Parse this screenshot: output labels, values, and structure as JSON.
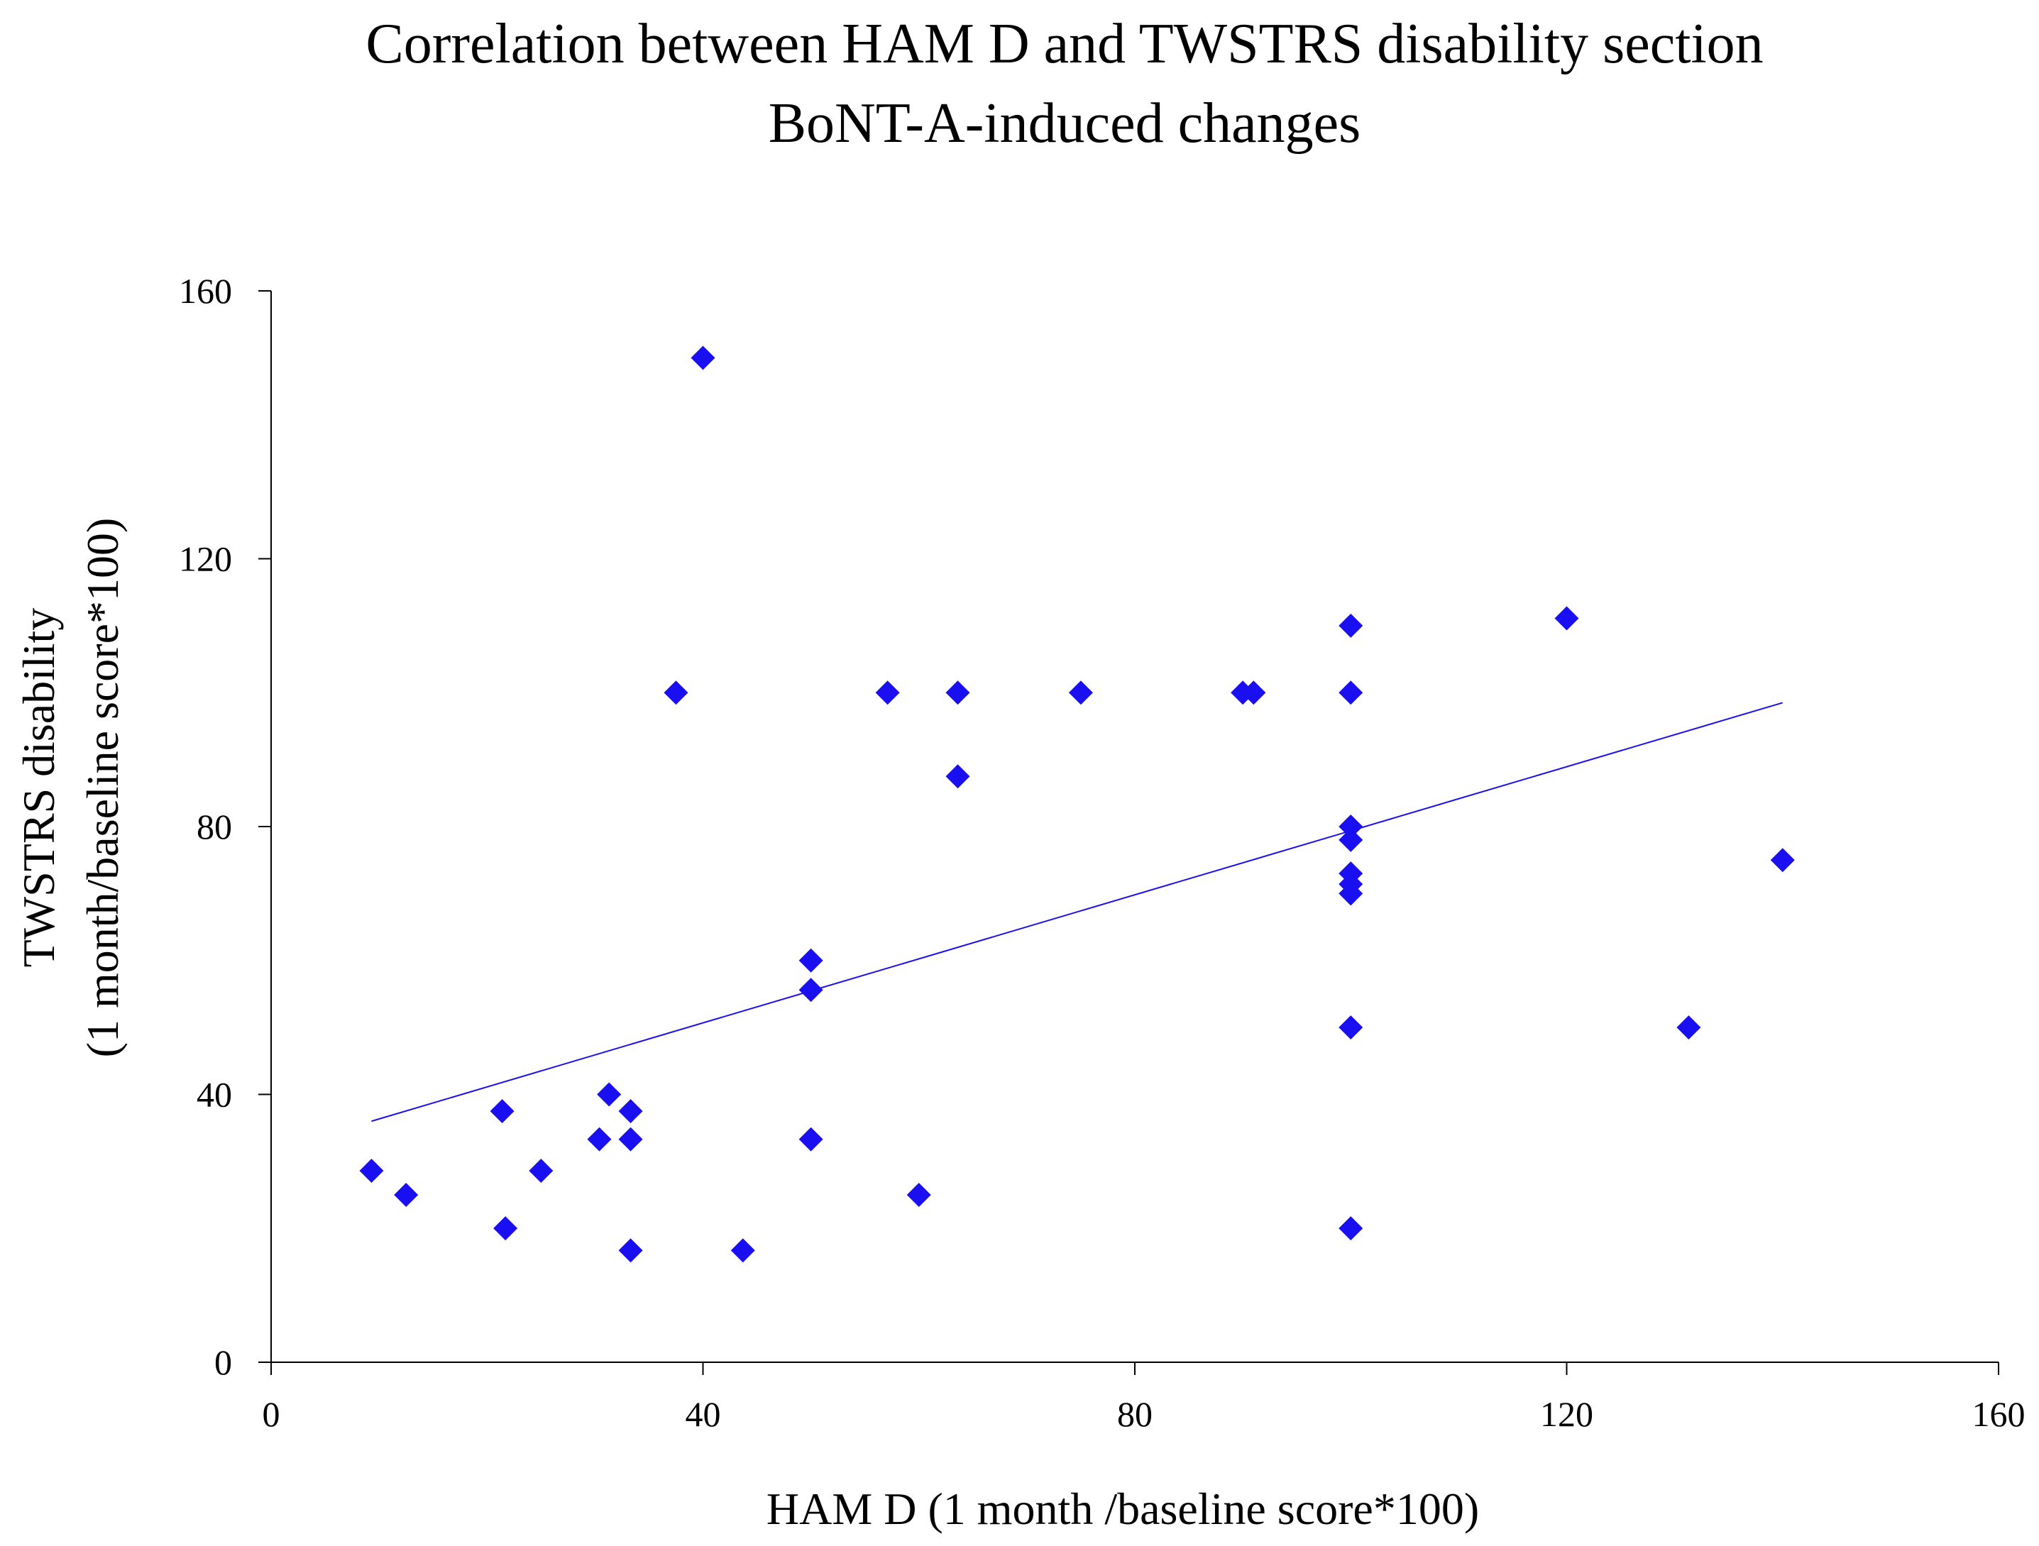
{
  "chart_data": {
    "type": "scatter",
    "title": "Correlation between HAM D and TWSTRS disability section",
    "subtitle": "BoNT-A-induced changes",
    "xlabel": "HAM D  (1 month /baseline score*100)",
    "ylabel_line1": "TWSTRS disability",
    "ylabel_line2": "(1 month/baseline score*100)",
    "xlim": [
      0,
      160
    ],
    "ylim": [
      0,
      160
    ],
    "x_ticks": [
      0,
      40,
      80,
      120,
      160
    ],
    "y_ticks": [
      0,
      40,
      80,
      120,
      160
    ],
    "x_tick_labels": [
      "0",
      "40",
      "80",
      "120",
      "160"
    ],
    "y_tick_labels": [
      "0",
      "40",
      "80",
      "120",
      "160"
    ],
    "grid": false,
    "legend": "none",
    "series": [
      {
        "name": "data",
        "marker": "diamond",
        "color": "#1a0ff0",
        "points": [
          {
            "x": 9.3,
            "y": 28.6
          },
          {
            "x": 12.5,
            "y": 25
          },
          {
            "x": 21.4,
            "y": 37.5
          },
          {
            "x": 21.7,
            "y": 20
          },
          {
            "x": 25,
            "y": 28.6
          },
          {
            "x": 30.4,
            "y": 33.3
          },
          {
            "x": 31.3,
            "y": 40
          },
          {
            "x": 33.3,
            "y": 37.5
          },
          {
            "x": 33.3,
            "y": 33.3
          },
          {
            "x": 33.3,
            "y": 16.7
          },
          {
            "x": 37.5,
            "y": 100
          },
          {
            "x": 40,
            "y": 150
          },
          {
            "x": 43.7,
            "y": 16.7
          },
          {
            "x": 50,
            "y": 60
          },
          {
            "x": 50,
            "y": 55.6
          },
          {
            "x": 50,
            "y": 33.3
          },
          {
            "x": 57.1,
            "y": 100
          },
          {
            "x": 60,
            "y": 25
          },
          {
            "x": 63.6,
            "y": 100
          },
          {
            "x": 63.6,
            "y": 87.5
          },
          {
            "x": 75,
            "y": 100
          },
          {
            "x": 90,
            "y": 100
          },
          {
            "x": 91,
            "y": 100
          },
          {
            "x": 100,
            "y": 110
          },
          {
            "x": 100,
            "y": 100
          },
          {
            "x": 100,
            "y": 80
          },
          {
            "x": 100,
            "y": 78
          },
          {
            "x": 100,
            "y": 73
          },
          {
            "x": 100,
            "y": 71.4
          },
          {
            "x": 100,
            "y": 70
          },
          {
            "x": 100,
            "y": 50
          },
          {
            "x": 100,
            "y": 20
          },
          {
            "x": 120,
            "y": 111.1
          },
          {
            "x": 131.3,
            "y": 50
          },
          {
            "x": 140,
            "y": 75
          }
        ]
      }
    ],
    "trendline": {
      "color": "#1a0ff0",
      "x_start": 9.3,
      "y_start": 36,
      "x_end": 140,
      "y_end": 98.5
    }
  }
}
